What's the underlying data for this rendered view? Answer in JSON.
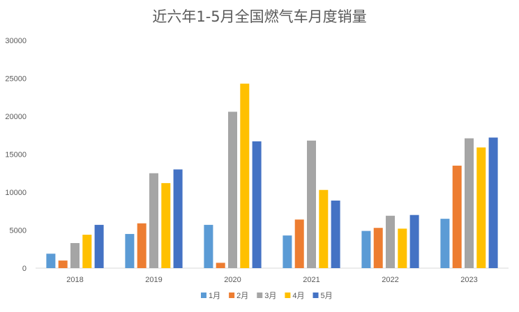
{
  "chart_data": {
    "type": "bar",
    "title": "近六年1-5月全国燃气车月度销量",
    "xlabel": "",
    "ylabel": "",
    "categories": [
      "2018",
      "2019",
      "2020",
      "2021",
      "2022",
      "2023"
    ],
    "ylim": [
      0,
      30000
    ],
    "yticks": [
      0,
      5000,
      10000,
      15000,
      20000,
      25000,
      30000
    ],
    "ytick_labels": [
      "0",
      "5000",
      "10000",
      "15000",
      "20000",
      "25000",
      "30000"
    ],
    "grid": false,
    "legend_position": "bottom",
    "series": [
      {
        "name": "1月",
        "color": "#5B9BD5",
        "values": [
          1900,
          4500,
          5700,
          4300,
          4900,
          6500
        ]
      },
      {
        "name": "2月",
        "color": "#ED7D31",
        "values": [
          1000,
          5900,
          700,
          6400,
          5300,
          13500
        ]
      },
      {
        "name": "3月",
        "color": "#A5A5A5",
        "values": [
          3300,
          12500,
          20600,
          16800,
          6900,
          17100
        ]
      },
      {
        "name": "4月",
        "color": "#FFC000",
        "values": [
          4400,
          11200,
          24300,
          10300,
          5200,
          15900
        ]
      },
      {
        "name": "5月",
        "color": "#4472C4",
        "values": [
          5700,
          13000,
          16700,
          8900,
          7000,
          17200
        ]
      }
    ]
  }
}
